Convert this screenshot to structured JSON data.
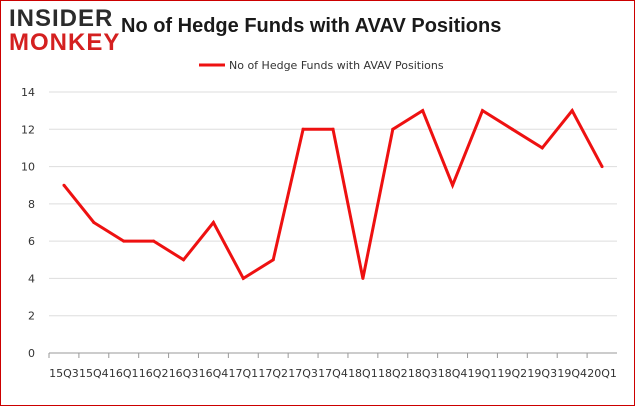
{
  "logo": {
    "line1": "INSIDER",
    "line2": "MONKEY"
  },
  "chart_data": {
    "type": "line",
    "title": "No of Hedge Funds with AVAV Positions",
    "xlabel": "",
    "ylabel": "",
    "categories": [
      "15Q3",
      "15Q4",
      "16Q1",
      "16Q2",
      "16Q3",
      "16Q4",
      "17Q1",
      "17Q2",
      "17Q3",
      "17Q4",
      "18Q1",
      "18Q2",
      "18Q3",
      "18Q4",
      "19Q1",
      "19Q2",
      "19Q3",
      "19Q4",
      "20Q1"
    ],
    "series": [
      {
        "name": "No of Hedge Funds with AVAV Positions",
        "values": [
          9,
          7,
          6,
          6,
          5,
          7,
          4,
          5,
          12,
          12,
          4,
          12,
          13,
          9,
          13,
          12,
          11,
          13,
          10
        ],
        "color": "#ee1111"
      }
    ],
    "ylim": [
      0,
      14
    ],
    "yticks": [
      0,
      2,
      4,
      6,
      8,
      10,
      12,
      14
    ],
    "grid": true,
    "legend": "top"
  }
}
